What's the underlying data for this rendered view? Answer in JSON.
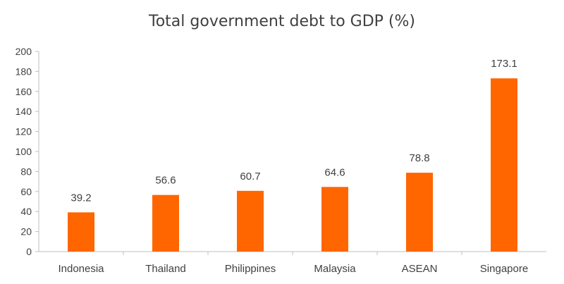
{
  "chart_data": {
    "type": "bar",
    "title": "Total government debt to GDP (%)",
    "categories": [
      "Indonesia",
      "Thailand",
      "Philippines",
      "Malaysia",
      "ASEAN",
      "Singapore"
    ],
    "values": [
      39.2,
      56.6,
      60.7,
      64.6,
      78.8,
      173.1
    ],
    "data_labels": [
      "39.2",
      "56.6",
      "60.7",
      "64.6",
      "78.8",
      "173.1"
    ],
    "ylim": [
      0,
      200
    ],
    "yticks": [
      0,
      20,
      40,
      60,
      80,
      100,
      120,
      140,
      160,
      180,
      200
    ],
    "xlabel": "",
    "ylabel": "",
    "grid": false,
    "legend": "none",
    "bar_color": "#FF6600",
    "axis_color": "#BFBFBF",
    "text_color": "#404040"
  }
}
